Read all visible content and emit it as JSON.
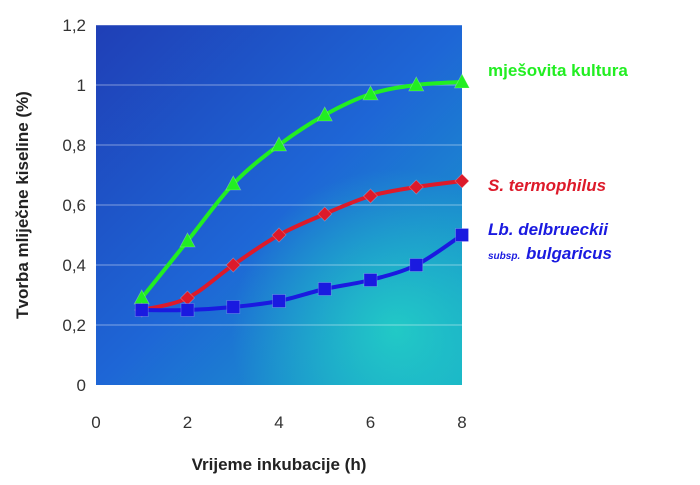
{
  "chart_data": {
    "type": "line",
    "xlabel": "Vrijeme inkubacije (h)",
    "ylabel": "Tvorba mliječne kiseline (%)",
    "xlim": [
      0,
      8
    ],
    "ylim": [
      0,
      1.2
    ],
    "x_ticks": [
      "0",
      "2",
      "4",
      "6",
      "8"
    ],
    "y_ticks": [
      "0",
      "0,2",
      "0,4",
      "0,6",
      "0,8",
      "1",
      "1,2"
    ],
    "grid": true,
    "legend": "right (labels next to series ends)",
    "series": [
      {
        "id": "mixed",
        "name": "mješovita kultura",
        "color": "#22ee22",
        "marker": "triangle",
        "x": [
          1,
          2,
          3,
          4,
          5,
          6,
          7,
          8
        ],
        "values": [
          0.29,
          0.48,
          0.67,
          0.8,
          0.9,
          0.97,
          1.0,
          1.01
        ]
      },
      {
        "id": "st",
        "name": "S. termophilus",
        "color": "#dd1a2a",
        "marker": "diamond",
        "x": [
          1,
          2,
          3,
          4,
          5,
          6,
          7,
          8
        ],
        "values": [
          0.25,
          0.29,
          0.4,
          0.5,
          0.57,
          0.63,
          0.66,
          0.68
        ]
      },
      {
        "id": "lb",
        "name": "Lb. delbrueckii",
        "name_line2_prefix": "subsp.",
        "name_line2": "bulgaricus",
        "color": "#1a1ae0",
        "marker": "square",
        "x": [
          1,
          2,
          3,
          4,
          5,
          6,
          7,
          8
        ],
        "values": [
          0.25,
          0.25,
          0.26,
          0.28,
          0.32,
          0.35,
          0.4,
          0.5
        ]
      }
    ]
  }
}
